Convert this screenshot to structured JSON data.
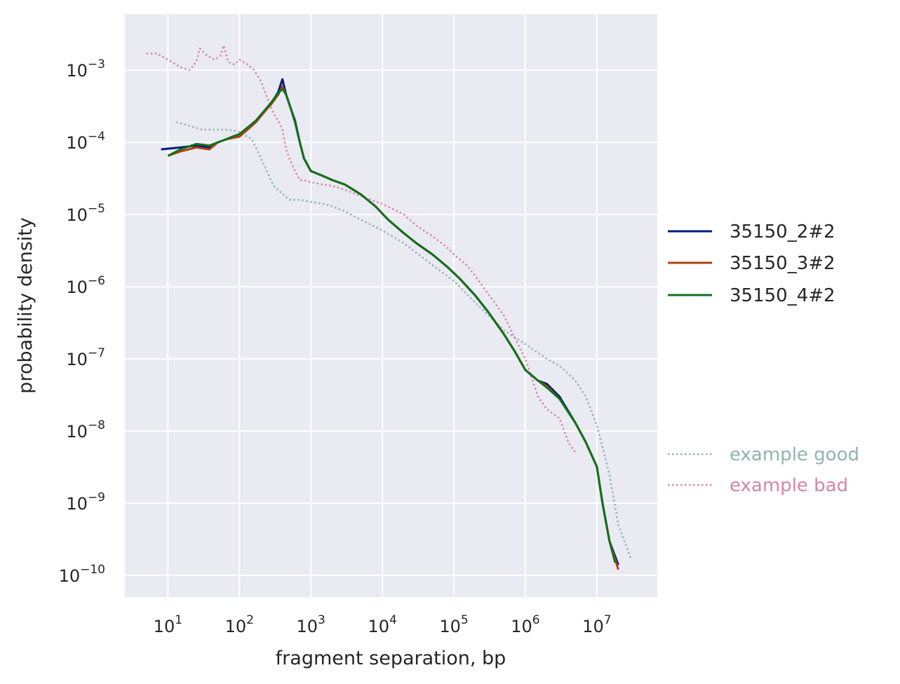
{
  "chart_data": {
    "type": "line",
    "title": "",
    "xlabel": "fragment separation, bp",
    "ylabel": "probability density",
    "xscale": "log",
    "yscale": "log",
    "xlim": [
      2.5,
      70000000
    ],
    "ylim": [
      5e-11,
      0.006
    ],
    "grid": true,
    "x_ticks": [
      {
        "value": 10,
        "base": "10",
        "exp": "1"
      },
      {
        "value": 100,
        "base": "10",
        "exp": "2"
      },
      {
        "value": 1000,
        "base": "10",
        "exp": "3"
      },
      {
        "value": 10000,
        "base": "10",
        "exp": "4"
      },
      {
        "value": 100000,
        "base": "10",
        "exp": "5"
      },
      {
        "value": 1000000,
        "base": "10",
        "exp": "6"
      },
      {
        "value": 10000000,
        "base": "10",
        "exp": "7"
      }
    ],
    "y_ticks": [
      {
        "value": 0.001,
        "base": "10",
        "exp": "−3"
      },
      {
        "value": 0.0001,
        "base": "10",
        "exp": "−4"
      },
      {
        "value": 1e-05,
        "base": "10",
        "exp": "−5"
      },
      {
        "value": 1e-06,
        "base": "10",
        "exp": "−6"
      },
      {
        "value": 1e-07,
        "base": "10",
        "exp": "−7"
      },
      {
        "value": 1e-08,
        "base": "10",
        "exp": "−8"
      },
      {
        "value": 1e-09,
        "base": "10",
        "exp": "−9"
      },
      {
        "value": 1e-10,
        "base": "10",
        "exp": "−10"
      }
    ],
    "legend_placement": "right",
    "series": [
      {
        "name": "35150_2#2",
        "color": "#001c7f",
        "style": "solid",
        "x": [
          8,
          15,
          25,
          38,
          50,
          65,
          80,
          100,
          130,
          170,
          220,
          280,
          350,
          400,
          450,
          520,
          600,
          700,
          800,
          1000,
          1500,
          2000,
          3000,
          5000,
          8000,
          12000,
          20000,
          30000,
          50000,
          80000,
          120000,
          200000,
          300000,
          500000,
          700000,
          1000000,
          1500000,
          2000000,
          3000000,
          5000000,
          7000000,
          10000000,
          12000000,
          15000000,
          20000000
        ],
        "y": [
          8e-05,
          8.5e-05,
          9e-05,
          8.5e-05,
          0.0001,
          0.00011,
          0.00012,
          0.00013,
          0.00016,
          0.0002,
          0.00026,
          0.00035,
          0.0005,
          0.00075,
          0.00046,
          0.0003,
          0.0002,
          0.0001,
          6e-05,
          4e-05,
          3.4e-05,
          3e-05,
          2.6e-05,
          1.9e-05,
          1.3e-05,
          8.5e-06,
          5.5e-06,
          4e-06,
          2.8e-06,
          1.9e-06,
          1.3e-06,
          7.5e-07,
          4.5e-07,
          2.2e-07,
          1.3e-07,
          7e-08,
          5e-08,
          4.5e-08,
          3e-08,
          1.3e-08,
          7e-09,
          3.2e-09,
          1e-09,
          3e-10,
          1.4e-10
        ]
      },
      {
        "name": "35150_3#2",
        "color": "#b1400d",
        "style": "solid",
        "x": [
          10,
          15,
          25,
          38,
          50,
          65,
          80,
          100,
          130,
          170,
          220,
          280,
          350,
          400,
          450,
          520,
          600,
          700,
          800,
          1000,
          1500,
          2000,
          3000,
          5000,
          8000,
          12000,
          20000,
          30000,
          50000,
          80000,
          120000,
          200000,
          300000,
          500000,
          700000,
          1000000,
          1500000,
          2000000,
          3000000,
          5000000,
          7000000,
          10000000,
          12000000,
          15000000,
          20000000
        ],
        "y": [
          6.5e-05,
          7.5e-05,
          8.5e-05,
          8e-05,
          0.0001,
          0.00011,
          0.000115,
          0.00012,
          0.00015,
          0.00019,
          0.00026,
          0.00034,
          0.00046,
          0.0006,
          0.00045,
          0.0003,
          0.00019,
          0.0001,
          6e-05,
          4e-05,
          3.4e-05,
          3e-05,
          2.6e-05,
          1.9e-05,
          1.3e-05,
          8.5e-06,
          5.5e-06,
          4e-06,
          2.8e-06,
          1.9e-06,
          1.3e-06,
          7.5e-07,
          4.5e-07,
          2.2e-07,
          1.3e-07,
          7e-08,
          5e-08,
          4.2e-08,
          2.8e-08,
          1.3e-08,
          7e-09,
          3.2e-09,
          1e-09,
          3e-10,
          1.2e-10
        ]
      },
      {
        "name": "35150_4#2",
        "color": "#12711c",
        "style": "solid",
        "x": [
          10,
          15,
          25,
          38,
          50,
          65,
          80,
          100,
          130,
          170,
          220,
          280,
          350,
          400,
          450,
          520,
          600,
          700,
          800,
          1000,
          1500,
          2000,
          3000,
          5000,
          8000,
          12000,
          20000,
          30000,
          50000,
          80000,
          120000,
          200000,
          300000,
          500000,
          700000,
          1000000,
          1500000,
          2000000,
          3000000,
          5000000,
          7000000,
          10000000,
          12000000,
          15000000,
          18000000
        ],
        "y": [
          6.5e-05,
          8e-05,
          9.5e-05,
          9e-05,
          0.0001,
          0.00011,
          0.00012,
          0.00013,
          0.00016,
          0.0002,
          0.00027,
          0.00036,
          0.00048,
          0.00055,
          0.00046,
          0.0003,
          0.00019,
          0.0001,
          6e-05,
          4e-05,
          3.4e-05,
          3e-05,
          2.6e-05,
          1.9e-05,
          1.3e-05,
          8.5e-06,
          5.5e-06,
          4e-06,
          2.8e-06,
          1.9e-06,
          1.3e-06,
          7.5e-07,
          4.5e-07,
          2.2e-07,
          1.3e-07,
          7e-08,
          5e-08,
          4e-08,
          2.8e-08,
          1.3e-08,
          7e-09,
          3.2e-09,
          1e-09,
          3e-10,
          1.5e-10
        ]
      },
      {
        "name": "example good",
        "color": "#8fb5ad",
        "style": "dotted",
        "x": [
          13,
          20,
          30,
          50,
          70,
          100,
          150,
          200,
          300,
          500,
          700,
          1000,
          1500,
          2000,
          3000,
          5000,
          10000,
          20000,
          50000,
          100000,
          200000,
          500000,
          1000000,
          2000000,
          3000000,
          5000000,
          7000000,
          10000000,
          15000000,
          20000000,
          30000000
        ],
        "y": [
          0.00019,
          0.00017,
          0.00015,
          0.00015,
          0.00015,
          0.00014,
          0.00011,
          6e-05,
          2.5e-05,
          1.6e-05,
          1.6e-05,
          1.5e-05,
          1.4e-05,
          1.3e-05,
          1.1e-05,
          8.5e-06,
          6e-06,
          4e-06,
          2e-06,
          1.2e-06,
          6e-07,
          2.5e-07,
          1.6e-07,
          1e-07,
          8e-08,
          5e-08,
          3e-08,
          1.2e-08,
          2.5e-09,
          5e-10,
          1.7e-10
        ]
      },
      {
        "name": "example bad",
        "color": "#d687a1",
        "style": "dotted",
        "x": [
          5,
          7,
          10,
          15,
          20,
          25,
          28,
          35,
          45,
          55,
          60,
          70,
          85,
          100,
          130,
          160,
          200,
          250,
          300,
          350,
          400,
          450,
          500,
          600,
          700,
          800,
          1000,
          1500,
          2000,
          3000,
          5000,
          10000,
          20000,
          30000,
          50000,
          80000,
          100000,
          150000,
          200000,
          300000,
          500000,
          700000,
          1000000,
          1500000,
          2000000,
          3000000,
          4000000,
          5000000
        ],
        "y": [
          0.0017,
          0.0017,
          0.0014,
          0.0011,
          0.001,
          0.0013,
          0.002,
          0.0016,
          0.0014,
          0.0016,
          0.0022,
          0.0013,
          0.0012,
          0.0014,
          0.0012,
          0.001,
          0.0007,
          0.0004,
          0.00025,
          0.0002,
          0.00015,
          8e-05,
          6e-05,
          4e-05,
          3e-05,
          3e-05,
          2.8e-05,
          2.6e-05,
          2.5e-05,
          2.2e-05,
          1.8e-05,
          1.4e-05,
          1e-05,
          7e-06,
          5e-06,
          3.5e-06,
          2.8e-06,
          2e-06,
          1.4e-06,
          8e-07,
          4e-07,
          2e-07,
          1e-07,
          3e-08,
          2e-08,
          1.5e-08,
          7e-09,
          5e-09
        ]
      }
    ]
  }
}
